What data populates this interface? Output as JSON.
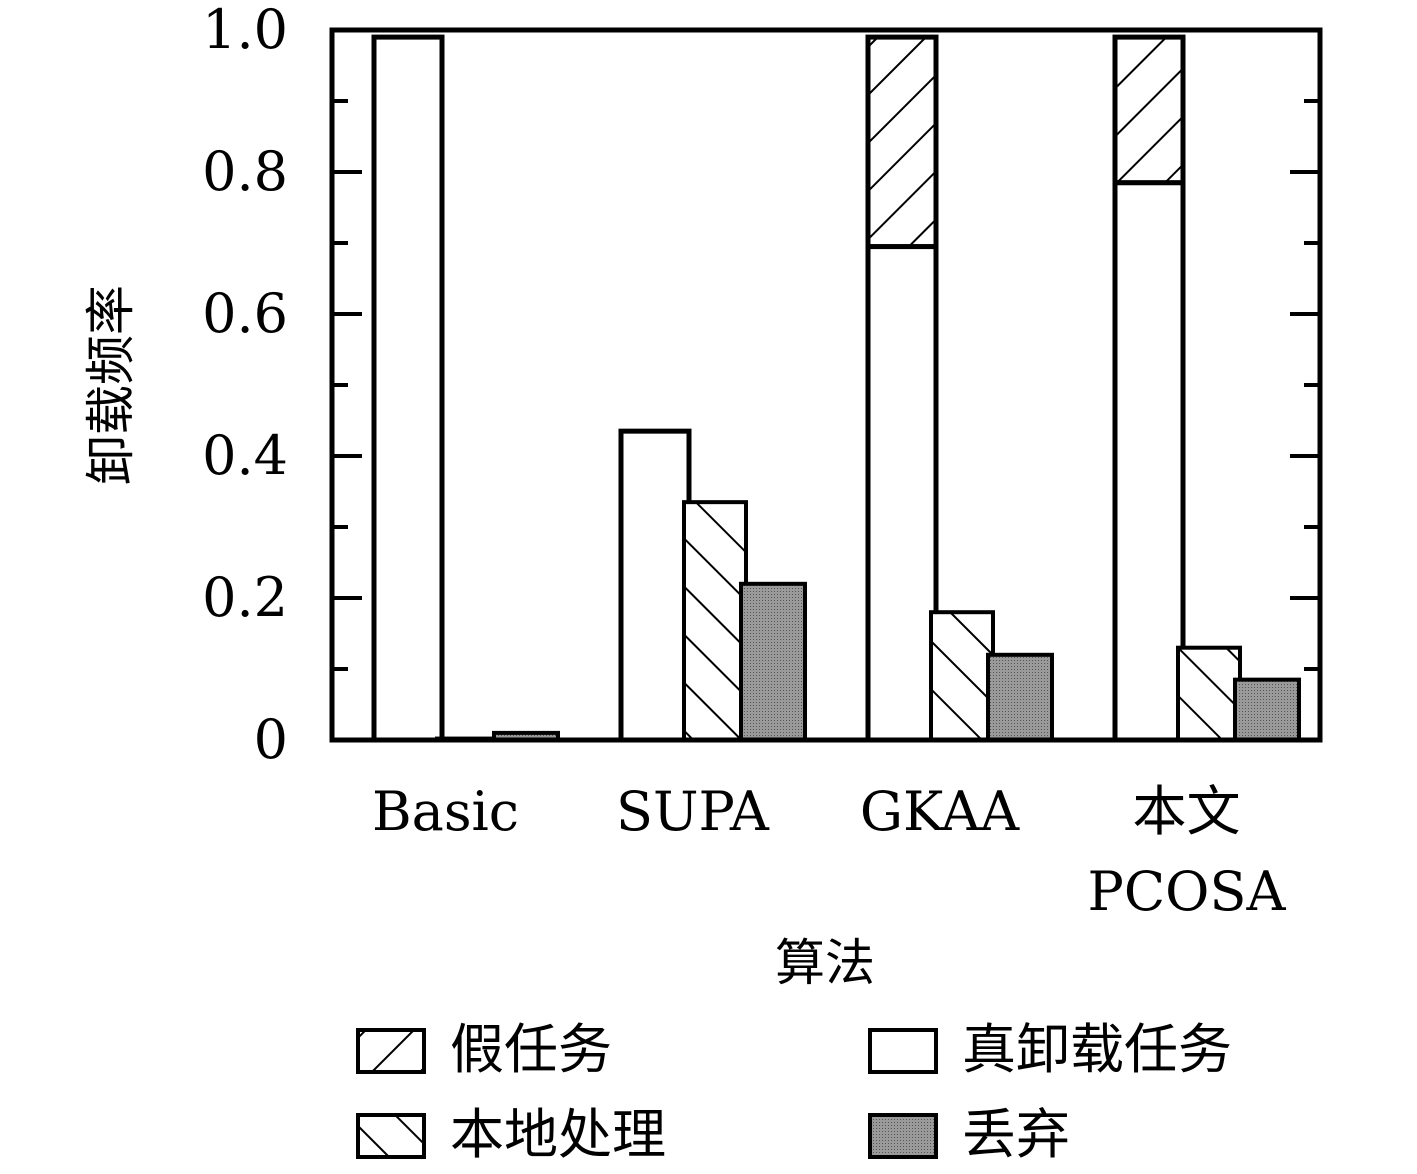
{
  "chart_data": {
    "type": "bar",
    "xlabel": "算法",
    "ylabel": "卸载频率",
    "ylim": [
      0,
      1.0
    ],
    "yticks": [
      {
        "value": 0,
        "label": "0"
      },
      {
        "value": 0.2,
        "label": "0.2"
      },
      {
        "value": 0.4,
        "label": "0.4"
      },
      {
        "value": 0.6,
        "label": "0.6"
      },
      {
        "value": 0.8,
        "label": "0.8"
      },
      {
        "value": 1.0,
        "label": "1.0"
      }
    ],
    "categories": [
      {
        "lines": [
          "Basic"
        ]
      },
      {
        "lines": [
          "SUPA"
        ]
      },
      {
        "lines": [
          "GKAA"
        ]
      },
      {
        "lines": [
          "本文",
          "PCOSA"
        ]
      }
    ],
    "series": [
      {
        "name": "真卸载任务",
        "pattern": "white",
        "values": [
          0.99,
          0.435,
          0.695,
          0.785
        ]
      },
      {
        "name": "假任务",
        "pattern": "hatch-fwd",
        "stacked_on": "真卸载任务",
        "values": [
          0,
          0,
          0.295,
          0.205
        ]
      },
      {
        "name": "本地处理",
        "pattern": "hatch-back",
        "values": [
          0.002,
          0.335,
          0.18,
          0.13
        ]
      },
      {
        "name": "丢弃",
        "pattern": "gray",
        "values": [
          0.01,
          0.22,
          0.12,
          0.085
        ]
      }
    ],
    "legend": {
      "position": "bottom",
      "entries": [
        {
          "label": "假任务",
          "pattern": "hatch-fwd"
        },
        {
          "label": "真卸载任务",
          "pattern": "white"
        },
        {
          "label": "本地处理",
          "pattern": "hatch-back"
        },
        {
          "label": "丢弃",
          "pattern": "gray"
        }
      ]
    },
    "colors": {
      "outline": "#000000",
      "fill_white": "#ffffff",
      "fill_gray": "#8c8c8c"
    }
  }
}
